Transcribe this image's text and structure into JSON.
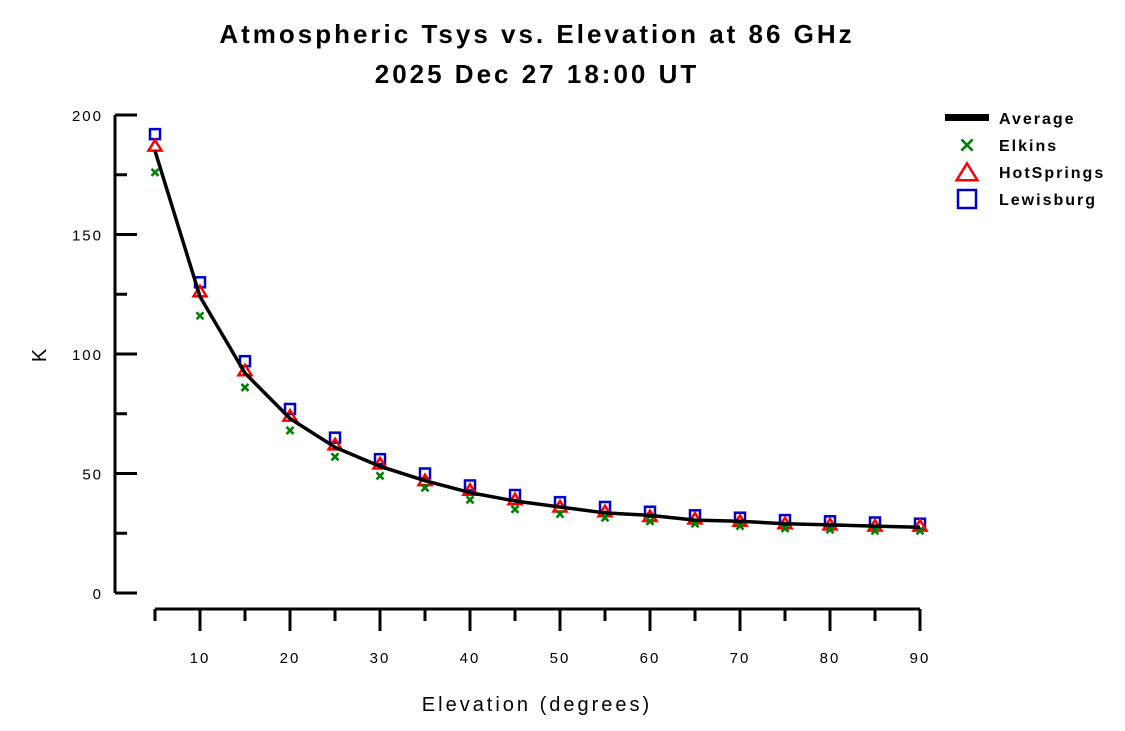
{
  "chart_data": {
    "type": "line",
    "title": "Atmospheric Tsys vs. Elevation at 86 GHz",
    "subtitle": "2025 Dec 27 18:00 UT",
    "xlabel": "Elevation (degrees)",
    "ylabel": "K",
    "xlim": [
      5,
      90
    ],
    "ylim": [
      0,
      200
    ],
    "x_ticks": [
      10,
      20,
      30,
      40,
      50,
      60,
      70,
      80,
      90
    ],
    "x_minor_ticks": [
      5,
      15,
      25,
      35,
      45,
      55,
      65,
      75,
      85
    ],
    "y_ticks": [
      0,
      50,
      100,
      150,
      200
    ],
    "y_minor_ticks": [
      25,
      75,
      125,
      175
    ],
    "grid": false,
    "legend_position": "top-right",
    "x": [
      5,
      10,
      15,
      20,
      25,
      30,
      35,
      40,
      45,
      50,
      55,
      60,
      65,
      70,
      75,
      80,
      85,
      90
    ],
    "series": [
      {
        "name": "Average",
        "style": "line",
        "color": "#000000",
        "values": [
          185,
          124,
          92,
          73,
          61,
          53,
          47,
          42,
          38.5,
          36,
          33.5,
          32.5,
          30.5,
          30,
          29,
          28.5,
          28,
          27.5
        ]
      },
      {
        "name": "Elkins",
        "style": "x",
        "color": "#008000",
        "values": [
          176,
          116,
          86,
          68,
          57,
          49,
          44,
          39,
          35,
          33,
          31.5,
          30,
          29,
          28,
          27,
          26.5,
          26,
          26
        ]
      },
      {
        "name": "HotSprings",
        "style": "triangle",
        "color": "#ff0000",
        "values": [
          187,
          126,
          93,
          74,
          62,
          54,
          47,
          43,
          39,
          36,
          34,
          32,
          31,
          30,
          29,
          28.5,
          28,
          28
        ]
      },
      {
        "name": "Lewisburg",
        "style": "square",
        "color": "#0000cc",
        "values": [
          192,
          130,
          97,
          77,
          65,
          56,
          50,
          45,
          41,
          38,
          36,
          34,
          32.5,
          31.5,
          30.5,
          30,
          29.5,
          29
        ]
      }
    ]
  }
}
